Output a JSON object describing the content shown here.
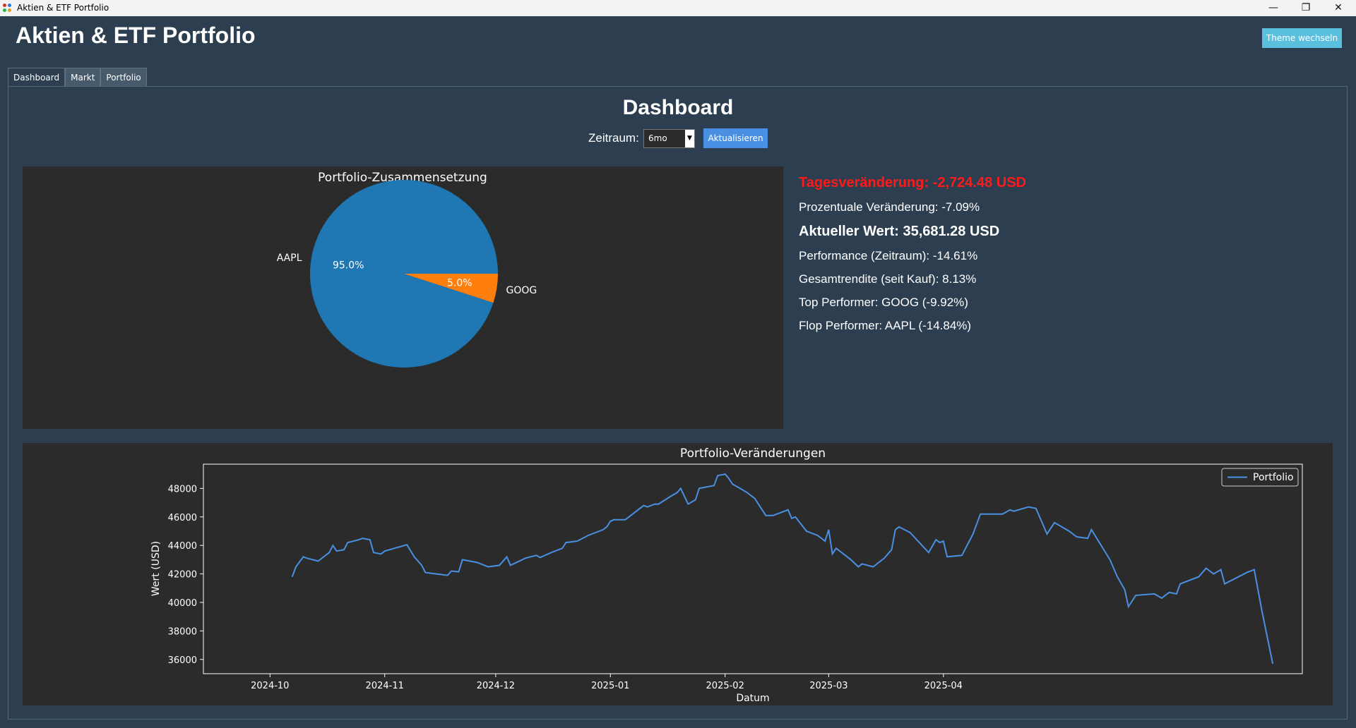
{
  "window": {
    "title": "Aktien & ETF Portfolio",
    "controls": {
      "minimize": "—",
      "restore": "❐",
      "close": "✕"
    }
  },
  "header": {
    "title": "Aktien & ETF Portfolio",
    "theme_button": "Theme wechseln"
  },
  "tabs": [
    {
      "label": "Dashboard",
      "active": true
    },
    {
      "label": "Markt",
      "active": false
    },
    {
      "label": "Portfolio",
      "active": false
    }
  ],
  "dashboard": {
    "title": "Dashboard",
    "zeitraum_label": "Zeitraum:",
    "zeitraum_value": "6mo",
    "refresh_button": "Aktualisieren"
  },
  "stats": {
    "daily_change": "Tagesveränderung: -2,724.48 USD",
    "percent_change": "Prozentuale Veränderung: -7.09%",
    "current_value": "Aktueller Wert: 35,681.28 USD",
    "performance": "Performance (Zeitraum): -14.61%",
    "total_return": "Gesamtrendite (seit Kauf): 8.13%",
    "top_performer": "Top Performer: GOOG (-9.92%)",
    "flop_performer": "Flop Performer: AAPL (-14.84%)"
  },
  "colors": {
    "aapl": "#1f77b4",
    "goog": "#ff7f0e",
    "line": "#4a90e2",
    "negative": "#ff1a1a"
  },
  "chart_data": [
    {
      "type": "pie",
      "title": "Portfolio-Zusammensetzung",
      "labels": [
        "AAPL",
        "GOOG"
      ],
      "values": [
        95.0,
        5.0
      ],
      "value_labels": [
        "95.0%",
        "5.0%"
      ]
    },
    {
      "type": "line",
      "title": "Portfolio-Veränderungen",
      "xlabel": "Datum",
      "ylabel": "Wert (USD)",
      "x_ticks": [
        "2024-10",
        "2024-11",
        "2024-12",
        "2025-01",
        "2025-02",
        "2025-03",
        "2025-04"
      ],
      "y_ticks": [
        "36000",
        "38000",
        "40000",
        "42000",
        "44000",
        "46000",
        "48000"
      ],
      "ylim": [
        35000,
        49700
      ],
      "legend_position": "top-right",
      "series": [
        {
          "name": "Portfolio",
          "points": [
            [
              "2024-10-07",
              41800
            ],
            [
              "2024-10-08",
              42500
            ],
            [
              "2024-10-10",
              43200
            ],
            [
              "2024-10-11",
              43100
            ],
            [
              "2024-10-14",
              42900
            ],
            [
              "2024-10-17",
              43500
            ],
            [
              "2024-10-18",
              44000
            ],
            [
              "2024-10-19",
              43600
            ],
            [
              "2024-10-21",
              43700
            ],
            [
              "2024-10-22",
              44200
            ],
            [
              "2024-10-25",
              44400
            ],
            [
              "2024-10-26",
              44500
            ],
            [
              "2024-10-28",
              44400
            ],
            [
              "2024-10-29",
              43500
            ],
            [
              "2024-10-31",
              43400
            ],
            [
              "2024-11-01",
              43600
            ],
            [
              "2024-11-05",
              43900
            ],
            [
              "2024-11-07",
              44050
            ],
            [
              "2024-11-09",
              43200
            ],
            [
              "2024-11-11",
              42600
            ],
            [
              "2024-11-12",
              42100
            ],
            [
              "2024-11-15",
              42000
            ],
            [
              "2024-11-18",
              41900
            ],
            [
              "2024-11-19",
              42200
            ],
            [
              "2024-11-21",
              42150
            ],
            [
              "2024-11-22",
              43000
            ],
            [
              "2024-11-26",
              42800
            ],
            [
              "2024-11-29",
              42500
            ],
            [
              "2024-12-02",
              42600
            ],
            [
              "2024-12-04",
              43200
            ],
            [
              "2024-12-05",
              42600
            ],
            [
              "2024-12-09",
              43100
            ],
            [
              "2024-12-12",
              43300
            ],
            [
              "2024-12-13",
              43150
            ],
            [
              "2024-12-16",
              43500
            ],
            [
              "2024-12-19",
              43800
            ],
            [
              "2024-12-20",
              44200
            ],
            [
              "2024-12-23",
              44300
            ],
            [
              "2024-12-26",
              44700
            ],
            [
              "2024-12-30",
              45100
            ],
            [
              "2024-12-31",
              45300
            ],
            [
              "2025-01-01",
              45700
            ],
            [
              "2025-01-02",
              45800
            ],
            [
              "2025-01-05",
              45800
            ],
            [
              "2025-01-06",
              46000
            ],
            [
              "2025-01-09",
              46600
            ],
            [
              "2025-01-10",
              46800
            ],
            [
              "2025-01-11",
              46700
            ],
            [
              "2025-01-13",
              46900
            ],
            [
              "2025-01-14",
              46900
            ],
            [
              "2025-01-17",
              47400
            ],
            [
              "2025-01-19",
              47700
            ],
            [
              "2025-01-20",
              48000
            ],
            [
              "2025-01-22",
              46900
            ],
            [
              "2025-01-24",
              47200
            ],
            [
              "2025-01-25",
              48000
            ],
            [
              "2025-01-29",
              48200
            ],
            [
              "2025-01-30",
              48900
            ],
            [
              "2025-02-01",
              49000
            ],
            [
              "2025-02-02",
              48700
            ],
            [
              "2025-02-03",
              48300
            ],
            [
              "2025-02-05",
              48000
            ],
            [
              "2025-02-07",
              47700
            ],
            [
              "2025-02-09",
              47300
            ],
            [
              "2025-02-12",
              46100
            ],
            [
              "2025-02-14",
              46100
            ],
            [
              "2025-02-18",
              46500
            ],
            [
              "2025-02-19",
              45900
            ],
            [
              "2025-02-20",
              46000
            ],
            [
              "2025-02-23",
              45000
            ],
            [
              "2025-02-26",
              44700
            ],
            [
              "2025-02-28",
              44300
            ],
            [
              "2025-03-01",
              45100
            ],
            [
              "2025-03-02",
              43400
            ],
            [
              "2025-03-03",
              43800
            ],
            [
              "2025-03-07",
              43000
            ],
            [
              "2025-03-09",
              42500
            ],
            [
              "2025-03-10",
              42700
            ],
            [
              "2025-03-13",
              42500
            ],
            [
              "2025-03-16",
              43100
            ],
            [
              "2025-03-18",
              43700
            ],
            [
              "2025-03-19",
              45100
            ],
            [
              "2025-03-20",
              45300
            ],
            [
              "2025-03-23",
              44900
            ],
            [
              "2025-03-28",
              43500
            ],
            [
              "2025-03-30",
              44400
            ],
            [
              "2025-03-31",
              44200
            ],
            [
              "2025-04-01",
              44300
            ],
            [
              "2025-04-02",
              43200
            ],
            [
              "2025-04-06",
              43300
            ],
            [
              "2025-04-09",
              44800
            ],
            [
              "2025-04-11",
              46200
            ],
            [
              "2025-04-17",
              46200
            ],
            [
              "2025-04-19",
              46500
            ],
            [
              "2025-04-20",
              46400
            ],
            [
              "2025-04-24",
              46700
            ],
            [
              "2025-04-26",
              46600
            ],
            [
              "2025-04-28",
              45400
            ],
            [
              "2025-04-29",
              44800
            ],
            [
              "2025-05-01",
              45600
            ],
            [
              "2025-05-05",
              45000
            ],
            [
              "2025-05-07",
              44600
            ],
            [
              "2025-05-10",
              44500
            ],
            [
              "2025-05-11",
              45100
            ],
            [
              "2025-05-16",
              43000
            ],
            [
              "2025-05-18",
              41800
            ],
            [
              "2025-05-20",
              40900
            ],
            [
              "2025-05-21",
              39700
            ],
            [
              "2025-05-23",
              40500
            ],
            [
              "2025-05-28",
              40600
            ],
            [
              "2025-05-30",
              40300
            ],
            [
              "2025-06-01",
              40700
            ],
            [
              "2025-06-03",
              40600
            ],
            [
              "2025-06-04",
              41300
            ],
            [
              "2025-06-09",
              41800
            ],
            [
              "2025-06-11",
              42400
            ],
            [
              "2025-06-13",
              42000
            ],
            [
              "2025-06-15",
              42300
            ],
            [
              "2025-06-16",
              41300
            ],
            [
              "2025-06-22",
              42100
            ],
            [
              "2025-06-24",
              42300
            ],
            [
              "2025-06-26",
              39500
            ],
            [
              "2025-06-29",
              35700
            ]
          ]
        }
      ]
    }
  ]
}
